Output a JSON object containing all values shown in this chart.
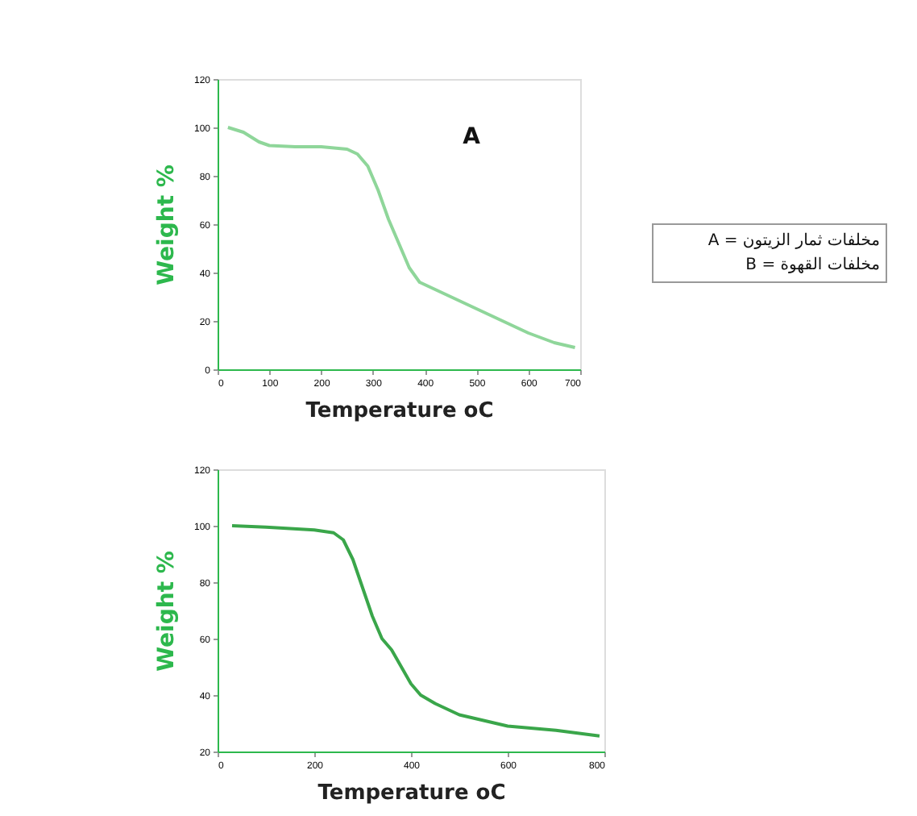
{
  "chart_data": [
    {
      "type": "line",
      "xlabel": "Temperature oC",
      "ylabel": "Weight %",
      "xlim": [
        0,
        700
      ],
      "ylim": [
        0,
        120
      ],
      "xticks": [
        0,
        100,
        200,
        300,
        400,
        500,
        600,
        700
      ],
      "yticks": [
        0,
        20,
        40,
        60,
        80,
        100,
        120
      ],
      "grid": false,
      "series": [
        {
          "color": "#8fd69a",
          "x": [
            20,
            50,
            80,
            100,
            150,
            200,
            250,
            270,
            290,
            310,
            330,
            350,
            370,
            390,
            420,
            500,
            600,
            650,
            690
          ],
          "values": [
            100,
            98,
            94,
            92.5,
            92,
            92,
            91,
            89,
            84,
            74,
            62,
            52,
            42,
            36,
            33,
            25,
            15,
            11,
            9
          ]
        }
      ],
      "annotations": [
        "A",
        "A = مخلفات ثمار الزيتون",
        "B = مخلفات القهوة"
      ]
    },
    {
      "type": "line",
      "xlabel": "Temperature oC",
      "ylabel": "Weight %",
      "xlim": [
        0,
        800
      ],
      "ylim": [
        20,
        120
      ],
      "xticks": [
        0,
        200,
        400,
        600,
        800
      ],
      "yticks": [
        20,
        40,
        60,
        80,
        100,
        120
      ],
      "grid": false,
      "series": [
        {
          "color": "#3aa64a",
          "x": [
            30,
            100,
            200,
            240,
            260,
            280,
            300,
            320,
            340,
            360,
            380,
            400,
            420,
            450,
            500,
            600,
            700,
            790
          ],
          "values": [
            100,
            99.5,
            98.5,
            97.5,
            95,
            88,
            78,
            68,
            60,
            56,
            50,
            44,
            40,
            37,
            33,
            29,
            27.5,
            25.5
          ]
        }
      ]
    }
  ]
}
